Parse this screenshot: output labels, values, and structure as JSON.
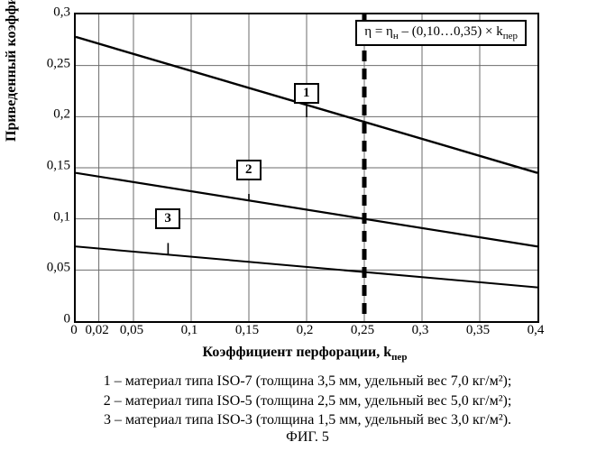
{
  "chart": {
    "type": "line",
    "xlim": [
      0,
      0.4
    ],
    "ylim": [
      0,
      0.3
    ],
    "xticks": [
      0,
      0.02,
      0.05,
      0.1,
      0.15,
      0.2,
      0.25,
      0.3,
      0.35,
      0.4
    ],
    "xtick_labels": [
      "0",
      "0,02",
      "0,05",
      "0,1",
      "0,15",
      "0,2",
      "0,25",
      "0,3",
      "0,35",
      "0,4"
    ],
    "yticks": [
      0,
      0.05,
      0.1,
      0.15,
      0.2,
      0.25,
      0.3
    ],
    "ytick_labels": [
      "0",
      "0,05",
      "0,1",
      "0,15",
      "0,2",
      "0,25",
      "0,3"
    ],
    "grid_color": "#6b6b6b",
    "grid_width": 1,
    "series": [
      {
        "id": "1",
        "y0": 0.278,
        "y1": 0.145,
        "width": 2.4,
        "color": "#000000",
        "callout": {
          "x": 0.2,
          "y": 0.21,
          "label": "1"
        }
      },
      {
        "id": "2",
        "y0": 0.145,
        "y1": 0.073,
        "width": 2.2,
        "color": "#000000",
        "callout": {
          "x": 0.15,
          "y": 0.135,
          "label": "2"
        }
      },
      {
        "id": "3",
        "y0": 0.073,
        "y1": 0.033,
        "width": 2.0,
        "color": "#000000",
        "callout": {
          "x": 0.08,
          "y": 0.087,
          "label": "3"
        }
      }
    ],
    "vline": {
      "x": 0.25,
      "color": "#000000",
      "dash": [
        12,
        8
      ],
      "width": 5
    },
    "equation": "η = η_н – (0,10…0,35) × k_пер",
    "ylabel": "Приведенный коэффициент потерь, η",
    "xlabel": "Коэффициент перфорации, k_пер",
    "label_fontsize": 16
  },
  "footer": {
    "lines": [
      "1 – материал типа ISO-7 (толщина 3,5 мм, удельный вес 7,0 кг/м²);",
      "2 – материал типа ISO-5 (толщина 2,5 мм, удельный вес 5,0 кг/м²);",
      "3 – материал типа ISO-3 (толщина 1,5 мм, удельный вес 3,0 кг/м²)."
    ],
    "caption": "ФИГ. 5"
  }
}
